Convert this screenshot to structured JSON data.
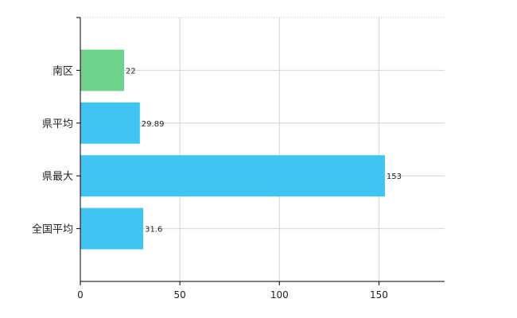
{
  "chart_data": {
    "type": "bar",
    "orientation": "horizontal",
    "categories": [
      "南区",
      "県平均",
      "県最大",
      "全国平均"
    ],
    "values": [
      22,
      29.89,
      153,
      31.6
    ],
    "value_labels": [
      "22",
      "29.89",
      "153",
      "31.6"
    ],
    "bar_colors": [
      "#6fd28a",
      "#40c4f4",
      "#40c4f4",
      "#40c4f4"
    ],
    "title": "",
    "xlabel": "",
    "ylabel": "",
    "xlim": [
      0,
      183
    ],
    "xticks": [
      0,
      50,
      100,
      150
    ],
    "xtick_labels": [
      "0",
      "50",
      "100",
      "150"
    ],
    "grid": true,
    "legend": "none"
  }
}
